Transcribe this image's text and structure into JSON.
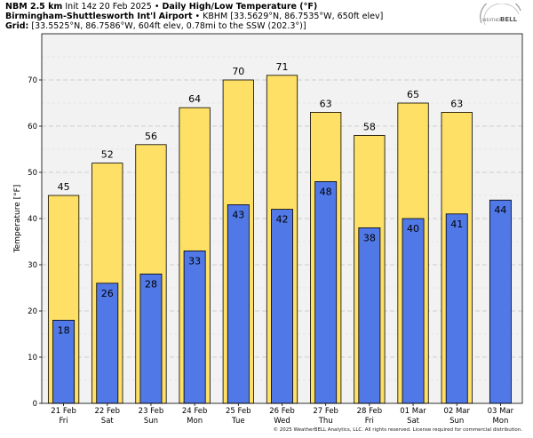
{
  "header": {
    "model": "NBM 2.5 km",
    "init": "Init 14z 20 Feb 2025",
    "sep": "•",
    "title": "Daily High/Low Temperature (°F)",
    "station_name": "Birmingham-Shuttlesworth Int'l Airport",
    "station_info": "KBHM [33.5629°N, 86.7535°W, 650ft elev]",
    "grid_label": "Grid:",
    "grid_info": "[33.5525°N, 86.7586°W, 604ft elev, 0.78mi to the SSW (202.3°)]"
  },
  "logo": {
    "text_small": "WEATHER",
    "text_big": "BELL"
  },
  "copyright": "© 2025 WeatherBELL Analytics, LLC. All rights reserved. License required for commercial distribution.",
  "chart_data": {
    "type": "bar",
    "categories": [
      "21 Feb",
      "22 Feb",
      "23 Feb",
      "24 Feb",
      "25 Feb",
      "26 Feb",
      "27 Feb",
      "28 Feb",
      "01 Mar",
      "02 Mar",
      "03 Mar"
    ],
    "weekdays": [
      "Fri",
      "Sat",
      "Sun",
      "Mon",
      "Tue",
      "Wed",
      "Thu",
      "Fri",
      "Sat",
      "Sun",
      "Mon"
    ],
    "series": [
      {
        "key": "high",
        "color": "#ffe066",
        "values": [
          45,
          52,
          56,
          64,
          70,
          71,
          63,
          58,
          65,
          63,
          null
        ]
      },
      {
        "key": "low",
        "color": "#5078e6",
        "values": [
          18,
          26,
          28,
          33,
          43,
          42,
          48,
          38,
          40,
          41,
          44
        ]
      }
    ],
    "high_labels": [
      "45",
      "52",
      "56",
      "64",
      "70",
      "71",
      "63",
      "58",
      "65",
      "63",
      ""
    ],
    "low_labels": [
      "18",
      "26",
      "28",
      "33",
      "43",
      "42",
      "48",
      "38",
      "40",
      "41",
      "44"
    ],
    "ylabel": "Temperature [°F]",
    "ylim": [
      0,
      80
    ],
    "yticks": [
      0,
      10,
      20,
      30,
      40,
      50,
      60,
      70
    ],
    "grid": true
  }
}
